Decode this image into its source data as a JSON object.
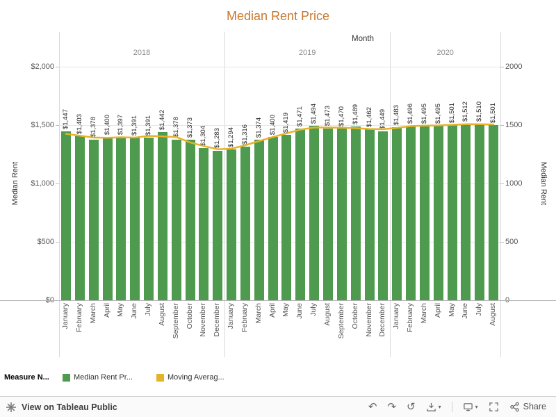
{
  "title": "Median Rent Price",
  "colors": {
    "title": "#c9772e",
    "bar": "#4e9a4e",
    "line": "#e6b229"
  },
  "axis": {
    "x_field_label": "Month",
    "left_axis_title": "Median Rent",
    "right_axis_title": "Median Rent",
    "tick_values": [
      0,
      500,
      1000,
      1500,
      2000
    ],
    "left_tick_labels": [
      "$0",
      "$500",
      "$1,000",
      "$1,500",
      "$2,000"
    ],
    "right_tick_labels": [
      "0",
      "500",
      "1000",
      "1500",
      "2000"
    ]
  },
  "chart_data": {
    "type": "bar",
    "title": "Median Rent Price",
    "x_field": "Month",
    "ylabel": "Median Rent",
    "ylim": [
      0,
      2000
    ],
    "grid_values": [
      500,
      1000,
      1500,
      2000
    ],
    "groups": [
      {
        "year": "2018",
        "months": [
          "January",
          "February",
          "March",
          "April",
          "May",
          "June",
          "July",
          "August",
          "September",
          "October",
          "November",
          "December"
        ],
        "values": [
          1447,
          1403,
          1378,
          1400,
          1397,
          1391,
          1391,
          1442,
          1378,
          1373,
          1304,
          1283
        ],
        "labels": [
          "$1,447",
          "$1,403",
          "$1,378",
          "$1,400",
          "$1,397",
          "$1,391",
          "$1,391",
          "$1,442",
          "$1,378",
          "$1,373",
          "$1,304",
          "$1,283"
        ]
      },
      {
        "year": "2019",
        "months": [
          "January",
          "February",
          "March",
          "April",
          "May",
          "June",
          "July",
          "August",
          "September",
          "October",
          "November",
          "December"
        ],
        "values": [
          1294,
          1316,
          1374,
          1400,
          1419,
          1471,
          1494,
          1473,
          1470,
          1489,
          1462,
          1449
        ],
        "labels": [
          "$1,294",
          "$1,316",
          "$1,374",
          "$1,400",
          "$1,419",
          "$1,471",
          "$1,494",
          "$1,473",
          "$1,470",
          "$1,489",
          "$1,462",
          "$1,449"
        ]
      },
      {
        "year": "2020",
        "months": [
          "January",
          "February",
          "March",
          "April",
          "May",
          "June",
          "July",
          "August"
        ],
        "values": [
          1483,
          1496,
          1495,
          1495,
          1501,
          1512,
          1510,
          1501
        ],
        "labels": [
          "$1,483",
          "$1,496",
          "$1,495",
          "$1,495",
          "$1,501",
          "$1,512",
          "$1,510",
          "$1,501"
        ]
      }
    ],
    "series": [
      {
        "name": "Median Rent Price",
        "type": "bar"
      },
      {
        "name": "Moving Average",
        "type": "line",
        "window": 3
      }
    ]
  },
  "legend": {
    "title": "Measure N...",
    "items": [
      {
        "label": "Median Rent Pr...",
        "color": "#4e9a4e"
      },
      {
        "label": "Moving Averag...",
        "color": "#e6b229"
      }
    ]
  },
  "toolbar": {
    "view_label": "View on Tableau Public",
    "share_label": "Share",
    "icons": {
      "undo": "↶",
      "redo": "↷",
      "revert": "↺",
      "caret": "▾"
    }
  }
}
